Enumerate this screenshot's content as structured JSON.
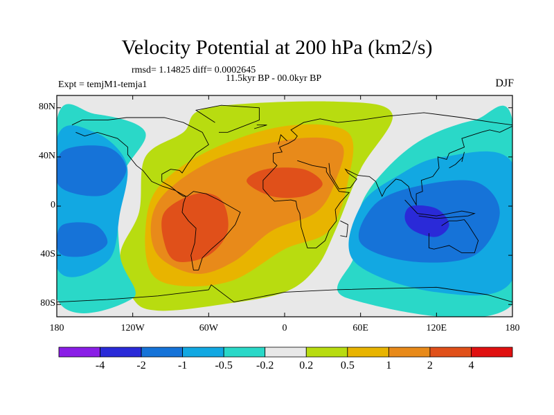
{
  "chart_data": {
    "type": "heatmap",
    "title": "Velocity Potential at 200 hPa (km2/s)",
    "stats": "rmsd= 1.14825 diff= 0.0002645",
    "period": "11.5kyr BP - 00.0kyr BP",
    "expt": "Expt = temjM1-temja1",
    "season": "DJF",
    "x_ticks": [
      "180",
      "120W",
      "60W",
      "0",
      "60E",
      "120E",
      "180"
    ],
    "x_tick_values": [
      -180,
      -120,
      -60,
      0,
      60,
      120,
      180
    ],
    "y_ticks": [
      "80N",
      "40N",
      "0",
      "40S",
      "80S"
    ],
    "y_tick_values": [
      80,
      40,
      0,
      -40,
      -80
    ],
    "xlim": [
      -180,
      180
    ],
    "ylim": [
      -90,
      90
    ],
    "colorbar": {
      "labels": [
        "-4",
        "-2",
        "-1",
        "-0.5",
        "-0.2",
        "0.2",
        "0.5",
        "1",
        "2",
        "4"
      ],
      "colors": [
        "#8a1ee6",
        "#2a2ad8",
        "#1673d8",
        "#12a8e2",
        "#2ad8c8",
        "#e8e8e8",
        "#b8dc10",
        "#e8b400",
        "#e88a1a",
        "#e0501a",
        "#e01010"
      ]
    },
    "field_regions": [
      {
        "level": "0.2 to 0.5",
        "color": "#b8dc10",
        "poly": [
          [
            -120,
            -75
          ],
          [
            -130,
            -40
          ],
          [
            -115,
            -5
          ],
          [
            -110,
            40
          ],
          [
            -80,
            60
          ],
          [
            -60,
            80
          ],
          [
            40,
            85
          ],
          [
            85,
            75
          ],
          [
            60,
            30
          ],
          [
            40,
            -20
          ],
          [
            25,
            -50
          ],
          [
            0,
            -70
          ],
          [
            -50,
            -80
          ],
          [
            -100,
            -85
          ]
        ]
      },
      {
        "level": "0.5 to 1",
        "color": "#e8b400",
        "poly": [
          [
            -105,
            -55
          ],
          [
            -110,
            -20
          ],
          [
            -100,
            15
          ],
          [
            -60,
            45
          ],
          [
            0,
            65
          ],
          [
            50,
            60
          ],
          [
            50,
            20
          ],
          [
            35,
            -20
          ],
          [
            0,
            -35
          ],
          [
            -40,
            -60
          ],
          [
            -80,
            -65
          ]
        ]
      },
      {
        "level": "1 to 2",
        "color": "#e88a1a",
        "poly": [
          [
            -100,
            -40
          ],
          [
            -105,
            -10
          ],
          [
            -90,
            15
          ],
          [
            -50,
            40
          ],
          [
            10,
            55
          ],
          [
            45,
            50
          ],
          [
            40,
            20
          ],
          [
            25,
            -5
          ],
          [
            -10,
            -20
          ],
          [
            -40,
            -45
          ],
          [
            -70,
            -55
          ]
        ]
      },
      {
        "level": "2 to 4",
        "color": "#e0501a",
        "poly": [
          [
            -95,
            -30
          ],
          [
            -95,
            -5
          ],
          [
            -70,
            10
          ],
          [
            -50,
            5
          ],
          [
            -45,
            -20
          ],
          [
            -60,
            -40
          ],
          [
            -85,
            -45
          ]
        ]
      },
      {
        "level": "2 to 4",
        "color": "#e0501a",
        "poly": [
          [
            -30,
            20
          ],
          [
            -15,
            30
          ],
          [
            15,
            30
          ],
          [
            30,
            18
          ],
          [
            15,
            8
          ],
          [
            -10,
            8
          ]
        ]
      },
      {
        "level": "-0.2 to -0.5",
        "color": "#2ad8c8",
        "poly": [
          [
            -180,
            -75
          ],
          [
            -180,
            70
          ],
          [
            -150,
            75
          ],
          [
            -110,
            60
          ],
          [
            -130,
            20
          ],
          [
            -130,
            -40
          ],
          [
            -120,
            -75
          ]
        ]
      },
      {
        "level": "-0.5 to -1",
        "color": "#12a8e2",
        "poly": [
          [
            -180,
            -50
          ],
          [
            -180,
            55
          ],
          [
            -150,
            60
          ],
          [
            -125,
            35
          ],
          [
            -130,
            -5
          ],
          [
            -140,
            -45
          ]
        ]
      },
      {
        "level": "-1 to -2",
        "color": "#1673d8",
        "poly": [
          [
            -180,
            20
          ],
          [
            -175,
            45
          ],
          [
            -140,
            48
          ],
          [
            -125,
            30
          ],
          [
            -140,
            10
          ],
          [
            -165,
            10
          ]
        ]
      },
      {
        "level": "-1 to -2",
        "color": "#1673d8",
        "poly": [
          [
            -180,
            -30
          ],
          [
            -175,
            -15
          ],
          [
            -150,
            -15
          ],
          [
            -140,
            -30
          ],
          [
            -155,
            -40
          ],
          [
            -175,
            -40
          ]
        ]
      },
      {
        "level": "-0.2 to -0.5",
        "color": "#2ad8c8",
        "poly": [
          [
            50,
            -75
          ],
          [
            55,
            -40
          ],
          [
            60,
            0
          ],
          [
            80,
            30
          ],
          [
            110,
            55
          ],
          [
            150,
            70
          ],
          [
            180,
            70
          ],
          [
            180,
            -80
          ]
        ]
      },
      {
        "level": "-0.5 to -1",
        "color": "#12a8e2",
        "poly": [
          [
            55,
            -45
          ],
          [
            60,
            0
          ],
          [
            90,
            25
          ],
          [
            125,
            40
          ],
          [
            180,
            35
          ],
          [
            180,
            -60
          ],
          [
            120,
            -70
          ]
        ]
      },
      {
        "level": "-1 to -2",
        "color": "#1673d8",
        "poly": [
          [
            60,
            -30
          ],
          [
            70,
            0
          ],
          [
            100,
            15
          ],
          [
            150,
            20
          ],
          [
            170,
            -5
          ],
          [
            150,
            -40
          ],
          [
            100,
            -45
          ]
        ]
      },
      {
        "level": "-2 to -4",
        "color": "#2a2ad8",
        "poly": [
          [
            95,
            -10
          ],
          [
            100,
            0
          ],
          [
            120,
            -2
          ],
          [
            130,
            -15
          ],
          [
            120,
            -25
          ],
          [
            102,
            -20
          ]
        ]
      }
    ]
  }
}
